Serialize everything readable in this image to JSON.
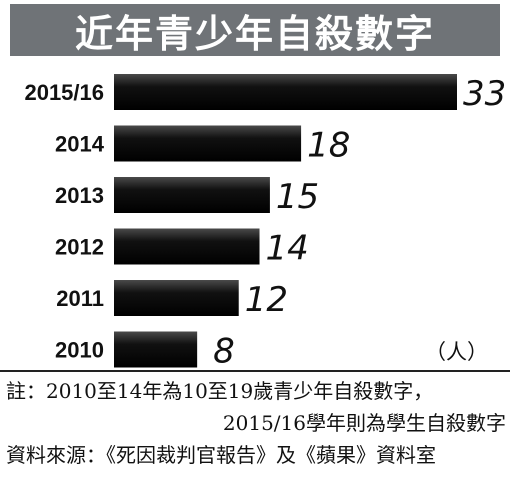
{
  "chart_data": {
    "type": "bar",
    "orientation": "horizontal",
    "title": "近年青少年自殺數字",
    "categories": [
      "2015/16",
      "2014",
      "2013",
      "2012",
      "2011",
      "2010"
    ],
    "values": [
      33,
      18,
      15,
      14,
      12,
      8
    ],
    "value_labels": [
      "33",
      "18",
      "15",
      "14",
      "12",
      "8"
    ],
    "unit": "（人）",
    "xlim": [
      0,
      33
    ],
    "grid": false,
    "legend": "none",
    "bar_color": "#141414"
  },
  "notes": {
    "line1": "註：2010至14年為10至19歲青少年自殺數字，",
    "line2": "2015/16學年則為學生自殺數字",
    "source": "資料來源：《死因裁判官報告》及《蘋果》資料室"
  },
  "colors": {
    "title_bg": "#6f7377",
    "title_text": "#ffffff",
    "bar": "#141414"
  }
}
